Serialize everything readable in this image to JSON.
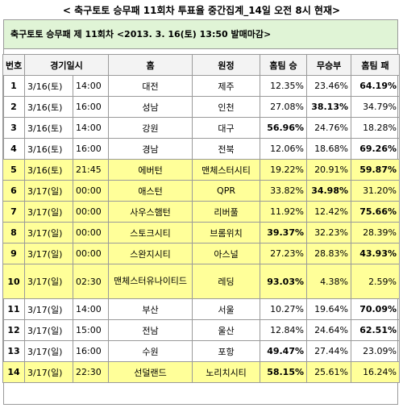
{
  "title": "< 축구토토 승무패 11회차 투표율 중간집계_14일 오전 8시 현재>",
  "subtitle": "축구토토 승무패 제 11회차 <2013. 3. 16(토) 13:50 발매마감>",
  "headers": {
    "no": "번호",
    "datetime": "경기일시",
    "home": "홈",
    "away": "원정",
    "home_win": "홈팀 승",
    "draw": "무승부",
    "home_loss": "홈팀 패"
  },
  "rows": [
    {
      "no": "1",
      "date": "3/16(토)",
      "time": "14:00",
      "home": "대전",
      "away": "제주",
      "win": "12.35%",
      "draw": "23.46%",
      "loss": "64.19%",
      "max": "loss",
      "highlight": false
    },
    {
      "no": "2",
      "date": "3/16(토)",
      "time": "16:00",
      "home": "성남",
      "away": "인천",
      "win": "27.08%",
      "draw": "38.13%",
      "loss": "34.79%",
      "max": "draw",
      "highlight": false
    },
    {
      "no": "3",
      "date": "3/16(토)",
      "time": "14:00",
      "home": "강원",
      "away": "대구",
      "win": "56.96%",
      "draw": "24.76%",
      "loss": "18.28%",
      "max": "win",
      "highlight": false
    },
    {
      "no": "4",
      "date": "3/16(토)",
      "time": "16:00",
      "home": "경남",
      "away": "전북",
      "win": "12.06%",
      "draw": "18.68%",
      "loss": "69.26%",
      "max": "loss",
      "highlight": false
    },
    {
      "no": "5",
      "date": "3/16(토)",
      "time": "21:45",
      "home": "에버턴",
      "away": "맨체스터시티",
      "win": "19.22%",
      "draw": "20.91%",
      "loss": "59.87%",
      "max": "loss",
      "highlight": true
    },
    {
      "no": "6",
      "date": "3/17(일)",
      "time": "00:00",
      "home": "애스턴",
      "away": "QPR",
      "win": "33.82%",
      "draw": "34.98%",
      "loss": "31.20%",
      "max": "draw",
      "highlight": true
    },
    {
      "no": "7",
      "date": "3/17(일)",
      "time": "00:00",
      "home": "사우스햄턴",
      "away": "리버풀",
      "win": "11.92%",
      "draw": "12.42%",
      "loss": "75.66%",
      "max": "loss",
      "highlight": true
    },
    {
      "no": "8",
      "date": "3/17(일)",
      "time": "00:00",
      "home": "스토크시티",
      "away": "브롬위치",
      "win": "39.37%",
      "draw": "32.23%",
      "loss": "28.39%",
      "max": "win",
      "highlight": true
    },
    {
      "no": "9",
      "date": "3/17(일)",
      "time": "00:00",
      "home": "스완지시티",
      "away": "아스널",
      "win": "27.23%",
      "draw": "28.83%",
      "loss": "43.93%",
      "max": "loss",
      "highlight": true
    },
    {
      "no": "10",
      "date": "3/17(일)",
      "time": "02:30",
      "home": "맨체스터유나이티드",
      "away": "레딩",
      "win": "93.03%",
      "draw": "4.38%",
      "loss": "2.59%",
      "max": "win",
      "highlight": true,
      "tall": true
    },
    {
      "no": "11",
      "date": "3/17(일)",
      "time": "14:00",
      "home": "부산",
      "away": "서울",
      "win": "10.27%",
      "draw": "19.64%",
      "loss": "70.09%",
      "max": "loss",
      "highlight": false
    },
    {
      "no": "12",
      "date": "3/17(일)",
      "time": "15:00",
      "home": "전남",
      "away": "울산",
      "win": "12.84%",
      "draw": "24.64%",
      "loss": "62.51%",
      "max": "loss",
      "highlight": false
    },
    {
      "no": "13",
      "date": "3/17(일)",
      "time": "16:00",
      "home": "수원",
      "away": "포항",
      "win": "49.47%",
      "draw": "27.44%",
      "loss": "23.09%",
      "max": "win",
      "highlight": false
    },
    {
      "no": "14",
      "date": "3/17(일)",
      "time": "22:30",
      "home": "선덜랜드",
      "away": "노리치시티",
      "win": "58.15%",
      "draw": "25.61%",
      "loss": "16.24%",
      "max": "win",
      "highlight": true
    }
  ]
}
